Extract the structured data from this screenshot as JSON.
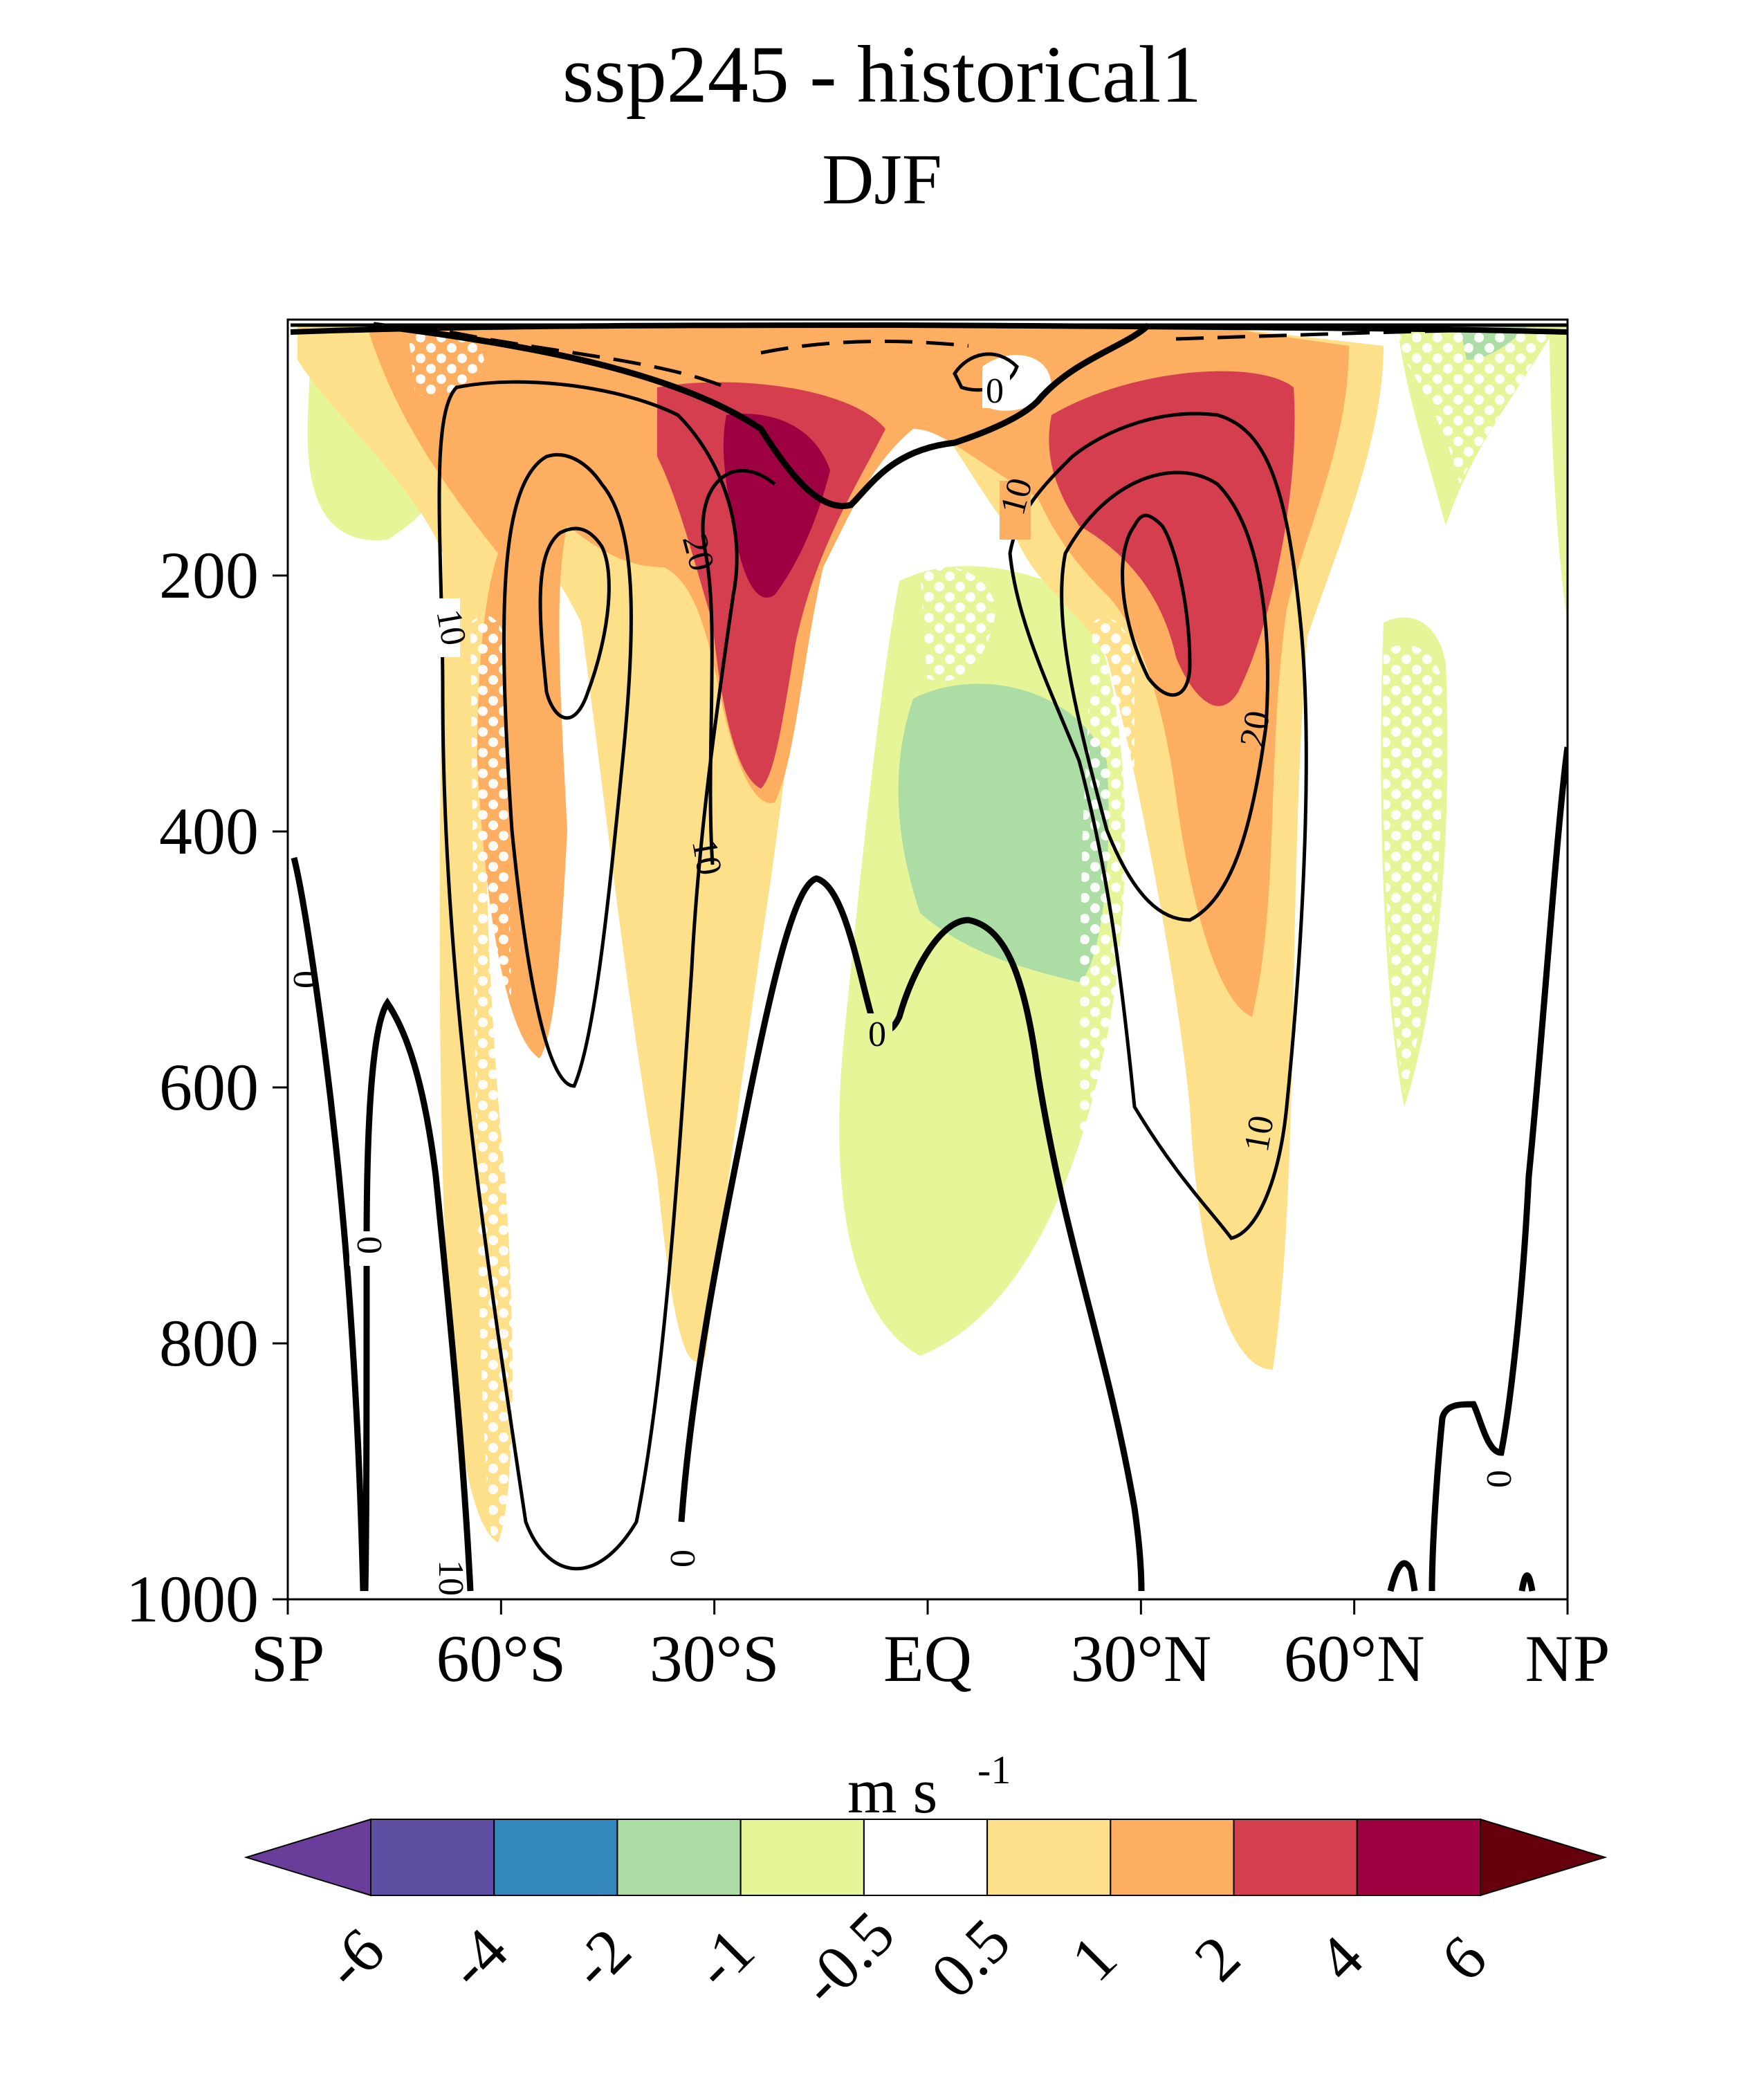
{
  "title": "ssp245 - historical1",
  "subtitle": "DJF",
  "chart_data": {
    "type": "contour",
    "title": "ssp245 - historical1",
    "subtitle": "DJF",
    "x_axis": {
      "label": "",
      "range": [
        -90,
        90
      ],
      "ticks": [
        -90,
        -60,
        -30,
        0,
        30,
        60,
        90
      ],
      "tick_labels": [
        "SP",
        "60°S",
        "30°S",
        "EQ",
        "30°N",
        "60°N",
        "NP"
      ]
    },
    "y_axis": {
      "label": "",
      "range": [
        1000,
        0
      ],
      "ticks": [
        200,
        400,
        600,
        800,
        1000
      ],
      "tick_labels": [
        "200",
        "400",
        "600",
        "800",
        "1000"
      ]
    },
    "shading": {
      "colorbar_label": "m s",
      "colorbar_label_exp": "-1",
      "levels": [
        "-6",
        "-4",
        "-2",
        "-1",
        "-0.5",
        "0.5",
        "1",
        "2",
        "4",
        "6"
      ],
      "colors": [
        "#5e4fa2",
        "#3288bd",
        "#abdda4",
        "#e6f598",
        "#ffffff",
        "#fee08b",
        "#fdae61",
        "#d53e4f",
        "#9e0142"
      ],
      "under_color": "#6a3d9a",
      "over_color": "#67000d"
    },
    "contour_lines": {
      "labels": [
        "0",
        "10",
        "20",
        "10",
        "10",
        "0",
        "10",
        "20",
        "10",
        "0",
        "0",
        "0",
        "0",
        "0"
      ]
    }
  }
}
